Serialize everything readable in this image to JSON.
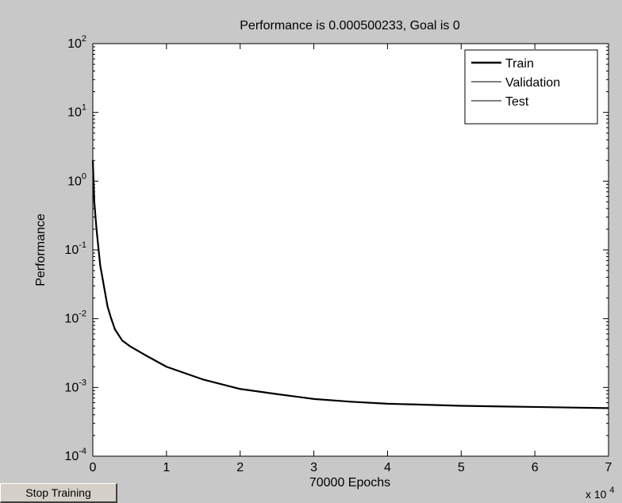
{
  "window": {
    "background": "#c8c8c8"
  },
  "controls": {
    "stop_training_label": "Stop Training"
  },
  "chart_data": {
    "type": "line",
    "title": "Performance is 0.000500233, Goal is 0",
    "xlabel": "70000 Epochs",
    "ylabel": "Performance",
    "x_multiplier": "x 10",
    "x_multiplier_exponent": "4",
    "xlim": [
      0,
      7
    ],
    "ylim": [
      0.0001,
      100
    ],
    "yscale": "log",
    "x_ticks": [
      "0",
      "1",
      "2",
      "3",
      "4",
      "5",
      "6",
      "7"
    ],
    "y_ticks": [
      {
        "base": "10",
        "exp": "-4",
        "value": 0.0001
      },
      {
        "base": "10",
        "exp": "-3",
        "value": 0.001
      },
      {
        "base": "10",
        "exp": "-2",
        "value": 0.01
      },
      {
        "base": "10",
        "exp": "-1",
        "value": 0.1
      },
      {
        "base": "10",
        "exp": "0",
        "value": 1
      },
      {
        "base": "10",
        "exp": "1",
        "value": 10
      },
      {
        "base": "10",
        "exp": "2",
        "value": 100
      }
    ],
    "grid": false,
    "legend_position": "top-right",
    "series": [
      {
        "name": "Train",
        "color": "#000000",
        "points": [
          [
            0.0,
            2.0
          ],
          [
            0.02,
            0.5
          ],
          [
            0.05,
            0.2
          ],
          [
            0.1,
            0.06
          ],
          [
            0.15,
            0.03
          ],
          [
            0.2,
            0.015
          ],
          [
            0.25,
            0.01
          ],
          [
            0.3,
            0.007
          ],
          [
            0.4,
            0.0048
          ],
          [
            0.5,
            0.004
          ],
          [
            0.7,
            0.003
          ],
          [
            1.0,
            0.002
          ],
          [
            1.5,
            0.0013
          ],
          [
            2.0,
            0.00095
          ],
          [
            2.5,
            0.0008
          ],
          [
            3.0,
            0.00068
          ],
          [
            3.5,
            0.00062
          ],
          [
            4.0,
            0.00058
          ],
          [
            4.5,
            0.00056
          ],
          [
            5.0,
            0.00054
          ],
          [
            5.5,
            0.00053
          ],
          [
            6.0,
            0.00052
          ],
          [
            6.5,
            0.00051
          ],
          [
            7.0,
            0.000500233
          ]
        ]
      },
      {
        "name": "Validation",
        "color": "#000000",
        "points": []
      },
      {
        "name": "Test",
        "color": "#000000",
        "points": []
      }
    ]
  }
}
